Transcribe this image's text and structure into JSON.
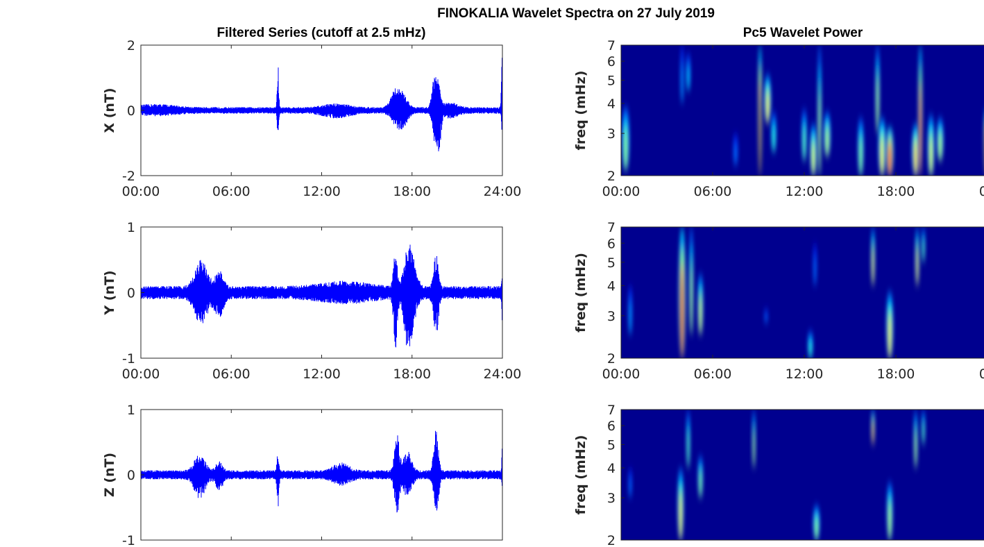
{
  "figure": {
    "title": "FINOKALIA Wavelet Spectra on 27 July 2019",
    "left_title": "Filtered Series (cutoff at 2.5 mHz)",
    "right_title": "Pc5 Wavelet Power"
  },
  "colors": {
    "trace": "#0000ff",
    "spectrum_background": "#00008f",
    "axis": "#262626"
  },
  "chart_data": [
    {
      "type": "line",
      "component": "X",
      "ylabel": "X (nT)",
      "ylim": [
        -2,
        2
      ],
      "yticks": [
        "-2",
        "0",
        "2"
      ],
      "xticks": [
        "00:00",
        "06:00",
        "12:00",
        "18:00",
        "24:00"
      ],
      "xlim_hours": [
        0,
        24
      ],
      "baseline_amplitude": 0.1,
      "bursts": [
        {
          "t": 1.0,
          "w": 1.2,
          "up": 0.1,
          "down": 0.08
        },
        {
          "t": 9.1,
          "w": 0.05,
          "up": 1.35,
          "down": 0.75
        },
        {
          "t": 13.0,
          "w": 0.8,
          "up": 0.12,
          "down": 0.15
        },
        {
          "t": 16.9,
          "w": 0.3,
          "up": 0.5,
          "down": 0.3
        },
        {
          "t": 17.4,
          "w": 0.3,
          "up": 0.35,
          "down": 0.4
        },
        {
          "t": 19.5,
          "w": 0.15,
          "up": 1.2,
          "down": 0.9
        },
        {
          "t": 19.8,
          "w": 0.12,
          "up": 0.5,
          "down": 1.1
        },
        {
          "t": 20.5,
          "w": 0.5,
          "up": 0.15,
          "down": 0.15
        },
        {
          "t": 23.97,
          "w": 0.04,
          "up": 2.0,
          "down": 0.6
        }
      ]
    },
    {
      "type": "line",
      "component": "Y",
      "ylabel": "Y (nT)",
      "ylim": [
        -1,
        1
      ],
      "yticks": [
        "-1",
        "0",
        "1"
      ],
      "xticks": [
        "00:00",
        "06:00",
        "12:00",
        "18:00",
        "24:00"
      ],
      "xlim_hours": [
        0,
        24
      ],
      "baseline_amplitude": 0.1,
      "bursts": [
        {
          "t": 4.0,
          "w": 0.4,
          "up": 0.4,
          "down": 0.4
        },
        {
          "t": 5.2,
          "w": 0.25,
          "up": 0.25,
          "down": 0.35
        },
        {
          "t": 13.5,
          "w": 1.5,
          "up": 0.08,
          "down": 0.08
        },
        {
          "t": 16.9,
          "w": 0.12,
          "up": 0.55,
          "down": 0.75
        },
        {
          "t": 17.7,
          "w": 0.25,
          "up": 0.4,
          "down": 0.6
        },
        {
          "t": 18.0,
          "w": 0.3,
          "up": 0.35,
          "down": 0.3
        },
        {
          "t": 19.6,
          "w": 0.15,
          "up": 0.5,
          "down": 0.6
        },
        {
          "t": 23.98,
          "w": 0.03,
          "up": 0.2,
          "down": 0.35
        }
      ]
    },
    {
      "type": "line",
      "component": "Z",
      "ylabel": "Z (nT)",
      "ylim": [
        -1,
        1
      ],
      "yticks": [
        "-1",
        "0",
        "1"
      ],
      "xticks": [
        "00:00",
        "06:00",
        "12:00",
        "18:00",
        "24:00"
      ],
      "xlim_hours": [
        0,
        24
      ],
      "baseline_amplitude": 0.07,
      "bursts": [
        {
          "t": 3.9,
          "w": 0.35,
          "up": 0.25,
          "down": 0.3
        },
        {
          "t": 5.2,
          "w": 0.2,
          "up": 0.15,
          "down": 0.2
        },
        {
          "t": 9.1,
          "w": 0.06,
          "up": 0.3,
          "down": 0.45
        },
        {
          "t": 13.3,
          "w": 0.5,
          "up": 0.12,
          "down": 0.1
        },
        {
          "t": 17.0,
          "w": 0.15,
          "up": 0.6,
          "down": 0.55
        },
        {
          "t": 17.7,
          "w": 0.25,
          "up": 0.3,
          "down": 0.3
        },
        {
          "t": 19.6,
          "w": 0.15,
          "up": 0.65,
          "down": 0.6
        },
        {
          "t": 23.98,
          "w": 0.03,
          "up": 0.4,
          "down": 0.1
        }
      ]
    },
    {
      "type": "heatmap",
      "component": "X",
      "ylabel": "freq (mHz)",
      "yscale": "log",
      "ylim": [
        2,
        7
      ],
      "yticks": [
        "2",
        "3",
        "4",
        "5",
        "6",
        "7"
      ],
      "xticks": [
        "00:00",
        "06:00",
        "12:00",
        "18:00",
        "00"
      ],
      "xlim_hours": [
        0,
        24
      ],
      "blobs": [
        {
          "t": 0.3,
          "w": 0.35,
          "fmin": 2.1,
          "fmax": 3.9,
          "power": 0.45
        },
        {
          "t": 4.0,
          "w": 0.08,
          "fmin": 4.0,
          "fmax": 7.0,
          "power": 0.2
        },
        {
          "t": 4.4,
          "w": 0.15,
          "fmin": 4.5,
          "fmax": 6.5,
          "power": 0.25
        },
        {
          "t": 7.5,
          "w": 0.15,
          "fmin": 2.2,
          "fmax": 3.0,
          "power": 0.15
        },
        {
          "t": 9.1,
          "w": 0.1,
          "fmin": 2.0,
          "fmax": 7.0,
          "power": 1.0
        },
        {
          "t": 9.6,
          "w": 0.3,
          "fmin": 3.3,
          "fmax": 5.3,
          "power": 0.6
        },
        {
          "t": 10.0,
          "w": 0.2,
          "fmin": 2.5,
          "fmax": 3.7,
          "power": 0.35
        },
        {
          "t": 12.0,
          "w": 0.2,
          "fmin": 2.3,
          "fmax": 3.8,
          "power": 0.4
        },
        {
          "t": 12.6,
          "w": 0.3,
          "fmin": 2.0,
          "fmax": 3.3,
          "power": 0.55
        },
        {
          "t": 13.0,
          "w": 0.1,
          "fmin": 2.0,
          "fmax": 7.0,
          "power": 0.5
        },
        {
          "t": 13.5,
          "w": 0.3,
          "fmin": 2.4,
          "fmax": 3.7,
          "power": 0.5
        },
        {
          "t": 15.7,
          "w": 0.25,
          "fmin": 2.0,
          "fmax": 3.5,
          "power": 0.45
        },
        {
          "t": 16.8,
          "w": 0.12,
          "fmin": 3.0,
          "fmax": 7.0,
          "power": 0.5
        },
        {
          "t": 17.1,
          "w": 0.35,
          "fmin": 2.0,
          "fmax": 3.5,
          "power": 0.6
        },
        {
          "t": 17.6,
          "w": 0.35,
          "fmin": 2.0,
          "fmax": 3.2,
          "power": 0.85
        },
        {
          "t": 19.3,
          "w": 0.35,
          "fmin": 2.0,
          "fmax": 3.3,
          "power": 0.65
        },
        {
          "t": 19.6,
          "w": 0.12,
          "fmin": 2.0,
          "fmax": 7.0,
          "power": 0.85
        },
        {
          "t": 20.3,
          "w": 0.3,
          "fmin": 2.0,
          "fmax": 3.6,
          "power": 0.55
        },
        {
          "t": 20.9,
          "w": 0.3,
          "fmin": 2.3,
          "fmax": 3.5,
          "power": 0.5
        },
        {
          "t": 23.9,
          "w": 0.12,
          "fmin": 2.0,
          "fmax": 3.8,
          "power": 1.0
        }
      ]
    },
    {
      "type": "heatmap",
      "component": "Y",
      "ylabel": "freq (mHz)",
      "yscale": "log",
      "ylim": [
        2,
        7
      ],
      "yticks": [
        "2",
        "3",
        "4",
        "5",
        "6",
        "7"
      ],
      "xticks": [
        "00:00",
        "06:00",
        "12:00",
        "18:00",
        "00"
      ],
      "xlim_hours": [
        0,
        24
      ],
      "blobs": [
        {
          "t": 0.6,
          "w": 0.12,
          "fmin": 2.5,
          "fmax": 4.0,
          "power": 0.2
        },
        {
          "t": 4.0,
          "w": 0.3,
          "fmin": 2.0,
          "fmax": 7.0,
          "power": 0.9
        },
        {
          "t": 4.6,
          "w": 0.12,
          "fmin": 2.5,
          "fmax": 7.0,
          "power": 0.5
        },
        {
          "t": 5.2,
          "w": 0.2,
          "fmin": 2.5,
          "fmax": 4.5,
          "power": 0.55
        },
        {
          "t": 9.5,
          "w": 0.08,
          "fmin": 2.8,
          "fmax": 3.2,
          "power": 0.15
        },
        {
          "t": 12.4,
          "w": 0.2,
          "fmin": 2.0,
          "fmax": 2.6,
          "power": 0.35
        },
        {
          "t": 12.7,
          "w": 0.08,
          "fmin": 4.0,
          "fmax": 6.0,
          "power": 0.15
        },
        {
          "t": 16.5,
          "w": 0.1,
          "fmin": 4.0,
          "fmax": 7.0,
          "power": 0.6
        },
        {
          "t": 17.6,
          "w": 0.3,
          "fmin": 2.0,
          "fmax": 3.8,
          "power": 0.6
        },
        {
          "t": 19.4,
          "w": 0.1,
          "fmin": 4.0,
          "fmax": 7.0,
          "power": 0.6
        },
        {
          "t": 19.8,
          "w": 0.08,
          "fmin": 5.0,
          "fmax": 7.0,
          "power": 0.4
        }
      ]
    },
    {
      "type": "heatmap",
      "component": "Z",
      "ylabel": "freq (mHz)",
      "yscale": "log",
      "ylim": [
        2,
        7
      ],
      "yticks": [
        "2",
        "3",
        "4",
        "5",
        "6",
        "7"
      ],
      "xticks": [],
      "xlim_hours": [
        0,
        24
      ],
      "blobs": [
        {
          "t": 0.6,
          "w": 0.08,
          "fmin": 3.0,
          "fmax": 4.0,
          "power": 0.15
        },
        {
          "t": 3.9,
          "w": 0.25,
          "fmin": 2.0,
          "fmax": 4.0,
          "power": 0.6
        },
        {
          "t": 4.4,
          "w": 0.1,
          "fmin": 4.0,
          "fmax": 7.0,
          "power": 0.4
        },
        {
          "t": 5.2,
          "w": 0.18,
          "fmin": 3.0,
          "fmax": 4.5,
          "power": 0.45
        },
        {
          "t": 8.7,
          "w": 0.06,
          "fmin": 4.0,
          "fmax": 7.0,
          "power": 0.5
        },
        {
          "t": 12.8,
          "w": 0.3,
          "fmin": 2.0,
          "fmax": 2.8,
          "power": 0.45
        },
        {
          "t": 16.5,
          "w": 0.08,
          "fmin": 5.0,
          "fmax": 7.0,
          "power": 0.7
        },
        {
          "t": 17.6,
          "w": 0.25,
          "fmin": 2.0,
          "fmax": 3.5,
          "power": 0.5
        },
        {
          "t": 19.3,
          "w": 0.1,
          "fmin": 4.0,
          "fmax": 7.0,
          "power": 0.5
        },
        {
          "t": 19.8,
          "w": 0.08,
          "fmin": 5.0,
          "fmax": 7.0,
          "power": 0.4
        }
      ]
    }
  ]
}
